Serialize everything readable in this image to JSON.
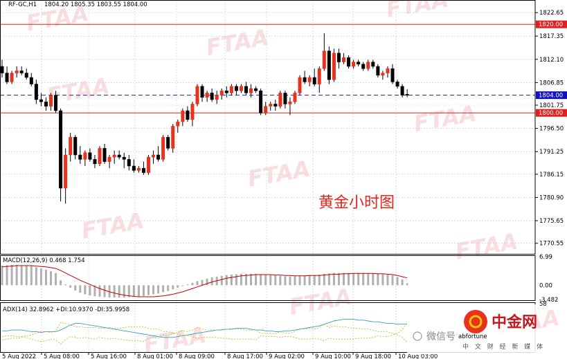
{
  "header": {
    "symbol": "RF-GC,H1",
    "ohlc": "1804.20 1805.35 1803.55 1804.00"
  },
  "overlay_title": "黄金小时图",
  "watermark_text": "FTAA",
  "logo": {
    "wechat_text": "微信号",
    "wechat_tail": "abfortune",
    "brand": "中金网",
    "brand_sub": "中 文 财 经 新 媒 体"
  },
  "colors": {
    "bull": "#e8321e",
    "bear": "#000000",
    "hline": "#e02020",
    "dash": "#1a1ad0",
    "macd_hist": "#b0b0b0",
    "macd_signal": "#c00000",
    "adx_main": "#30a0c0",
    "adx_plus": "#a0c020",
    "adx_minus": "#e0a000",
    "box_red": "#e02020",
    "box_blue": "#1010c0"
  },
  "chart_data": [
    {
      "type": "candlestick",
      "title": "RF-GC,H1",
      "ylim": [
        1768.0,
        1825.5
      ],
      "yticks": [
        "1822.65",
        "1817.35",
        "1812.10",
        "1806.85",
        "1801.75",
        "1796.50",
        "1791.25",
        "1786.15",
        "1780.90",
        "1775.65",
        "1770.55"
      ],
      "xticks": [
        "5 Aug 2022",
        "5 Aug 08:00",
        "5 Aug 16:00",
        "8 Aug 01:00",
        "8 Aug 09:00",
        "8 Aug 17:00",
        "9 Aug 02:00",
        "9 Aug 10:00",
        "9 Aug 18:00",
        "10 Aug 03:00"
      ],
      "horizontal_lines": [
        {
          "value": 1820.0,
          "label": "1820.00",
          "style": "solid"
        },
        {
          "value": 1800.0,
          "label": "1800.00",
          "style": "solid"
        },
        {
          "value": 1804.0,
          "label": "1804.00",
          "style": "dashed"
        }
      ],
      "ohlc": [
        [
          1810.5,
          1812.0,
          1808.0,
          1809.0
        ],
        [
          1809.0,
          1810.5,
          1806.5,
          1807.0
        ],
        [
          1807.0,
          1809.5,
          1806.5,
          1809.0
        ],
        [
          1809.0,
          1810.5,
          1808.0,
          1809.5
        ],
        [
          1809.5,
          1810.5,
          1808.5,
          1809.0
        ],
        [
          1809.0,
          1810.0,
          1807.5,
          1808.0
        ],
        [
          1808.0,
          1809.0,
          1806.0,
          1806.5
        ],
        [
          1806.5,
          1807.5,
          1802.0,
          1803.0
        ],
        [
          1803.0,
          1804.5,
          1801.5,
          1802.5
        ],
        [
          1802.5,
          1803.5,
          1800.5,
          1801.5
        ],
        [
          1801.5,
          1804.5,
          1800.5,
          1804.0
        ],
        [
          1804.0,
          1805.0,
          1800.0,
          1800.5
        ],
        [
          1800.5,
          1801.0,
          1780.0,
          1783.0
        ],
        [
          1783.0,
          1792.0,
          1779.5,
          1790.5
        ],
        [
          1790.5,
          1795.5,
          1789.0,
          1794.5
        ],
        [
          1794.5,
          1795.0,
          1789.5,
          1790.5
        ],
        [
          1790.5,
          1792.5,
          1788.5,
          1789.5
        ],
        [
          1789.5,
          1791.5,
          1788.0,
          1791.0
        ],
        [
          1791.0,
          1792.0,
          1789.0,
          1789.5
        ],
        [
          1789.5,
          1790.5,
          1787.5,
          1788.5
        ],
        [
          1788.5,
          1792.5,
          1788.0,
          1792.0
        ],
        [
          1792.0,
          1793.0,
          1788.5,
          1789.0
        ],
        [
          1789.0,
          1790.5,
          1787.5,
          1790.0
        ],
        [
          1790.0,
          1791.5,
          1788.5,
          1790.5
        ],
        [
          1790.5,
          1791.5,
          1789.5,
          1790.0
        ],
        [
          1790.0,
          1791.0,
          1787.5,
          1789.5
        ],
        [
          1789.5,
          1790.5,
          1787.0,
          1788.0
        ],
        [
          1788.0,
          1789.5,
          1786.5,
          1787.0
        ],
        [
          1787.0,
          1788.0,
          1786.5,
          1787.5
        ],
        [
          1787.5,
          1789.0,
          1786.0,
          1786.5
        ],
        [
          1786.5,
          1790.5,
          1786.0,
          1790.0
        ],
        [
          1790.0,
          1791.5,
          1788.5,
          1790.5
        ],
        [
          1790.5,
          1792.5,
          1789.0,
          1789.5
        ],
        [
          1789.5,
          1795.0,
          1789.0,
          1794.5
        ],
        [
          1794.5,
          1795.0,
          1791.5,
          1792.0
        ],
        [
          1792.0,
          1797.5,
          1791.0,
          1797.0
        ],
        [
          1797.0,
          1798.5,
          1795.5,
          1798.0
        ],
        [
          1798.0,
          1801.0,
          1797.0,
          1800.5
        ],
        [
          1800.5,
          1801.5,
          1798.0,
          1798.5
        ],
        [
          1798.5,
          1802.5,
          1797.0,
          1802.0
        ],
        [
          1802.0,
          1806.5,
          1801.5,
          1806.0
        ],
        [
          1806.0,
          1806.5,
          1802.5,
          1803.5
        ],
        [
          1803.5,
          1805.0,
          1802.5,
          1804.5
        ],
        [
          1804.5,
          1805.5,
          1802.5,
          1803.0
        ],
        [
          1803.0,
          1805.0,
          1802.0,
          1804.0
        ],
        [
          1804.0,
          1805.5,
          1803.0,
          1805.0
        ],
        [
          1805.0,
          1806.0,
          1803.5,
          1804.5
        ],
        [
          1804.5,
          1806.5,
          1804.0,
          1806.0
        ],
        [
          1806.0,
          1806.5,
          1804.0,
          1805.0
        ],
        [
          1805.0,
          1806.5,
          1804.5,
          1806.0
        ],
        [
          1806.0,
          1807.0,
          1804.0,
          1804.5
        ],
        [
          1804.5,
          1806.5,
          1803.5,
          1805.5
        ],
        [
          1805.5,
          1806.0,
          1804.5,
          1805.0
        ],
        [
          1805.0,
          1805.5,
          1799.5,
          1800.0
        ],
        [
          1800.0,
          1802.5,
          1799.5,
          1801.5
        ],
        [
          1801.5,
          1802.5,
          1800.5,
          1802.0
        ],
        [
          1802.0,
          1803.0,
          1800.5,
          1801.5
        ],
        [
          1801.5,
          1805.0,
          1801.0,
          1804.5
        ],
        [
          1804.5,
          1805.0,
          1801.0,
          1802.0
        ],
        [
          1802.0,
          1803.5,
          1799.5,
          1802.5
        ],
        [
          1802.5,
          1805.0,
          1802.0,
          1804.5
        ],
        [
          1804.5,
          1808.5,
          1804.0,
          1808.0
        ],
        [
          1808.0,
          1809.5,
          1806.5,
          1807.0
        ],
        [
          1807.0,
          1808.5,
          1806.0,
          1808.0
        ],
        [
          1808.0,
          1810.0,
          1806.0,
          1806.5
        ],
        [
          1806.5,
          1810.5,
          1804.5,
          1810.0
        ],
        [
          1810.0,
          1818.0,
          1809.5,
          1814.0
        ],
        [
          1814.0,
          1815.0,
          1806.5,
          1807.5
        ],
        [
          1807.5,
          1814.5,
          1807.0,
          1813.5
        ],
        [
          1813.5,
          1814.5,
          1810.0,
          1811.5
        ],
        [
          1811.5,
          1813.5,
          1811.0,
          1812.5
        ],
        [
          1812.5,
          1813.0,
          1810.0,
          1810.5
        ],
        [
          1810.5,
          1812.0,
          1810.0,
          1811.5
        ],
        [
          1811.5,
          1812.0,
          1810.5,
          1811.0
        ],
        [
          1811.0,
          1811.5,
          1809.5,
          1810.0
        ],
        [
          1810.0,
          1812.0,
          1809.5,
          1811.5
        ],
        [
          1811.5,
          1812.0,
          1810.0,
          1810.5
        ],
        [
          1810.5,
          1811.0,
          1808.0,
          1808.5
        ],
        [
          1808.5,
          1809.5,
          1807.5,
          1809.0
        ],
        [
          1809.0,
          1810.5,
          1808.0,
          1810.0
        ],
        [
          1810.0,
          1811.0,
          1806.5,
          1807.0
        ],
        [
          1807.0,
          1807.5,
          1805.5,
          1806.0
        ],
        [
          1806.0,
          1806.5,
          1803.5,
          1804.0
        ],
        [
          1804.2,
          1805.35,
          1803.55,
          1804.0
        ]
      ]
    },
    {
      "type": "bar",
      "title": "MACD(12,26,9) 0.468 1.754",
      "ylim": [
        -3.482,
        6.99
      ],
      "yticks": [
        "6.99",
        "0.00",
        "-3.482"
      ],
      "series": [
        {
          "name": "MACD",
          "values": [
            4.8,
            4.9,
            5.0,
            5.0,
            4.9,
            4.8,
            4.7,
            4.4,
            4.1,
            3.8,
            3.4,
            3.0,
            1.2,
            0.2,
            -0.6,
            -1.3,
            -1.8,
            -2.2,
            -2.5,
            -2.7,
            -2.8,
            -2.9,
            -3.0,
            -3.0,
            -3.0,
            -3.0,
            -2.9,
            -2.8,
            -2.7,
            -2.6,
            -2.4,
            -2.2,
            -2.0,
            -1.7,
            -1.4,
            -1.0,
            -0.6,
            -0.2,
            0.2,
            0.6,
            1.0,
            1.3,
            1.6,
            1.9,
            2.1,
            2.3,
            2.5,
            2.6,
            2.7,
            2.8,
            2.8,
            2.8,
            2.8,
            2.7,
            2.6,
            2.5,
            2.4,
            2.3,
            2.2,
            2.2,
            2.2,
            2.3,
            2.4,
            2.5,
            2.5,
            2.6,
            2.8,
            2.9,
            3.0,
            3.0,
            3.0,
            3.0,
            3.0,
            3.0,
            3.0,
            2.9,
            2.9,
            2.8,
            2.7,
            2.6,
            2.4,
            2.0,
            1.4,
            0.5
          ]
        },
        {
          "name": "Signal",
          "values": [
            4.5,
            4.6,
            4.7,
            4.8,
            4.8,
            4.8,
            4.8,
            4.7,
            4.6,
            4.5,
            4.3,
            4.1,
            3.6,
            3.0,
            2.4,
            1.8,
            1.2,
            0.7,
            0.2,
            -0.3,
            -0.8,
            -1.2,
            -1.6,
            -1.9,
            -2.2,
            -2.4,
            -2.6,
            -2.7,
            -2.8,
            -2.8,
            -2.8,
            -2.8,
            -2.7,
            -2.6,
            -2.4,
            -2.2,
            -1.9,
            -1.6,
            -1.2,
            -0.8,
            -0.4,
            0.0,
            0.4,
            0.8,
            1.1,
            1.4,
            1.7,
            1.9,
            2.1,
            2.3,
            2.4,
            2.5,
            2.6,
            2.6,
            2.6,
            2.6,
            2.5,
            2.5,
            2.4,
            2.4,
            2.3,
            2.3,
            2.3,
            2.4,
            2.4,
            2.4,
            2.5,
            2.6,
            2.7,
            2.7,
            2.8,
            2.8,
            2.9,
            2.9,
            2.9,
            2.9,
            2.9,
            2.8,
            2.8,
            2.7,
            2.6,
            2.4,
            2.1,
            1.8
          ]
        }
      ]
    },
    {
      "type": "line",
      "title": "ADX(14) 32.8962 +DI:10.9370 -DI:35.9958",
      "ylim": [
        0,
        58
      ],
      "yticks": [
        "58"
      ],
      "series": [
        {
          "name": "ADX",
          "values": [
            25,
            25,
            26,
            26,
            26,
            25,
            24,
            24,
            23,
            24,
            24,
            24,
            26,
            29,
            32,
            34,
            34,
            33,
            32,
            31,
            30,
            29,
            28,
            27,
            26,
            25,
            24,
            23,
            22,
            21,
            20,
            19,
            18,
            17,
            17,
            17,
            18,
            19,
            20,
            21,
            22,
            23,
            24,
            25,
            26,
            26,
            27,
            27,
            28,
            28,
            28,
            27,
            26,
            26,
            25,
            25,
            24,
            24,
            25,
            25,
            26,
            27,
            28,
            29,
            30,
            31,
            33,
            35,
            37,
            38,
            39,
            39,
            39,
            38,
            38,
            37,
            36,
            36,
            35,
            34,
            34,
            33,
            33,
            33
          ]
        },
        {
          "name": "+DI",
          "values": [
            14,
            15,
            16,
            16,
            17,
            17,
            15,
            13,
            12,
            13,
            15,
            14,
            9,
            14,
            18,
            17,
            16,
            17,
            16,
            15,
            17,
            16,
            15,
            16,
            15,
            14,
            13,
            13,
            13,
            12,
            16,
            17,
            16,
            20,
            19,
            22,
            23,
            25,
            24,
            26,
            29,
            27,
            26,
            26,
            26,
            27,
            27,
            28,
            27,
            27,
            26,
            26,
            26,
            22,
            22,
            22,
            21,
            24,
            22,
            22,
            24,
            28,
            27,
            28,
            27,
            29,
            33,
            29,
            31,
            30,
            30,
            29,
            28,
            28,
            27,
            27,
            26,
            24,
            24,
            24,
            22,
            20,
            17,
            11
          ]
        },
        {
          "name": "-DI",
          "values": [
            18,
            19,
            19,
            18,
            18,
            19,
            20,
            22,
            24,
            24,
            23,
            25,
            35,
            34,
            32,
            30,
            30,
            29,
            29,
            29,
            28,
            28,
            29,
            28,
            28,
            29,
            30,
            30,
            30,
            30,
            28,
            27,
            27,
            24,
            24,
            22,
            21,
            19,
            20,
            18,
            16,
            17,
            17,
            17,
            17,
            16,
            16,
            15,
            15,
            15,
            15,
            15,
            14,
            19,
            18,
            18,
            18,
            17,
            18,
            18,
            17,
            15,
            15,
            15,
            16,
            15,
            13,
            16,
            15,
            15,
            15,
            15,
            15,
            16,
            16,
            16,
            17,
            19,
            18,
            18,
            20,
            22,
            26,
            36
          ]
        }
      ]
    }
  ]
}
